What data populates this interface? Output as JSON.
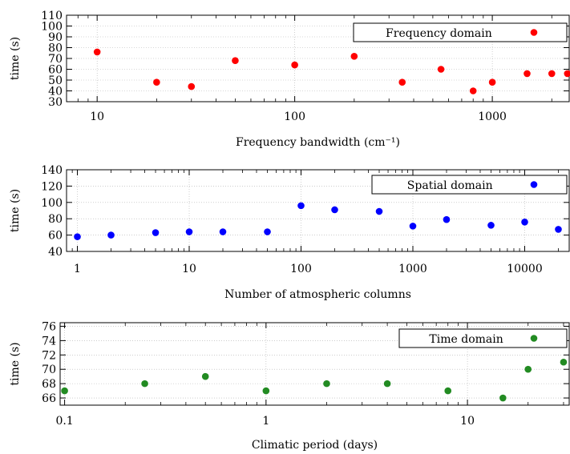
{
  "chart_data": [
    {
      "type": "scatter",
      "xscale": "log",
      "xlabel": "Frequency bandwidth (cm⁻¹)",
      "ylabel": "time (s)",
      "xlim": [
        7,
        2450
      ],
      "ylim": [
        30,
        110
      ],
      "xticks": [
        10,
        100,
        1000
      ],
      "xtick_labels": [
        "10",
        "100",
        "1000"
      ],
      "yticks": [
        30,
        40,
        50,
        60,
        70,
        80,
        90,
        100,
        110
      ],
      "ytick_labels": [
        "30",
        "40",
        "50",
        "60",
        "70",
        "80",
        "90",
        "100",
        "110"
      ],
      "grid": true,
      "legend_position": "top-right",
      "series": [
        {
          "name": "Frequency domain",
          "color": "#ff0000",
          "points": [
            [
              10,
              76
            ],
            [
              20,
              48
            ],
            [
              30,
              44
            ],
            [
              50,
              68
            ],
            [
              100,
              64
            ],
            [
              200,
              72
            ],
            [
              350,
              48
            ],
            [
              550,
              60
            ],
            [
              800,
              40
            ],
            [
              1000,
              48
            ],
            [
              1500,
              56
            ],
            [
              2000,
              56
            ],
            [
              2400,
              56
            ]
          ]
        }
      ]
    },
    {
      "type": "scatter",
      "xscale": "log",
      "xlabel": "Number of atmospheric columns",
      "ylabel": "time (s)",
      "xlim": [
        0.8,
        25000
      ],
      "ylim": [
        40,
        140
      ],
      "xticks": [
        1,
        10,
        100,
        1000,
        10000
      ],
      "xtick_labels": [
        "1",
        "10",
        "100",
        "1000",
        "10000"
      ],
      "yticks": [
        40,
        60,
        80,
        100,
        120,
        140
      ],
      "ytick_labels": [
        "40",
        "60",
        "80",
        "100",
        "120",
        "140"
      ],
      "grid": true,
      "legend_position": "top-right",
      "series": [
        {
          "name": "Spatial domain",
          "color": "#0000ff",
          "points": [
            [
              1,
              58
            ],
            [
              2,
              60
            ],
            [
              5,
              63
            ],
            [
              10,
              64
            ],
            [
              20,
              64
            ],
            [
              50,
              64
            ],
            [
              100,
              96
            ],
            [
              200,
              91
            ],
            [
              500,
              89
            ],
            [
              1000,
              71
            ],
            [
              2000,
              79
            ],
            [
              5000,
              72
            ],
            [
              10000,
              76
            ],
            [
              20000,
              67
            ]
          ]
        }
      ]
    },
    {
      "type": "scatter",
      "xscale": "log",
      "xlabel": "Climatic period (days)",
      "ylabel": "time (s)",
      "xlim": [
        0.095,
        32
      ],
      "ylim": [
        65,
        76.5
      ],
      "xticks": [
        0.1,
        1,
        10
      ],
      "xtick_labels": [
        "0.1",
        "1",
        "10"
      ],
      "yticks": [
        66,
        68,
        70,
        72,
        74,
        76
      ],
      "ytick_labels": [
        "66",
        "68",
        "70",
        "72",
        "74",
        "76"
      ],
      "grid": true,
      "legend_position": "top-right",
      "series": [
        {
          "name": "Time domain",
          "color": "#228b22",
          "points": [
            [
              0.1,
              67
            ],
            [
              0.25,
              68
            ],
            [
              0.5,
              69
            ],
            [
              1,
              67
            ],
            [
              2,
              68
            ],
            [
              4,
              68
            ],
            [
              8,
              67
            ],
            [
              15,
              66
            ],
            [
              20,
              70
            ],
            [
              30,
              71
            ]
          ]
        }
      ]
    }
  ]
}
